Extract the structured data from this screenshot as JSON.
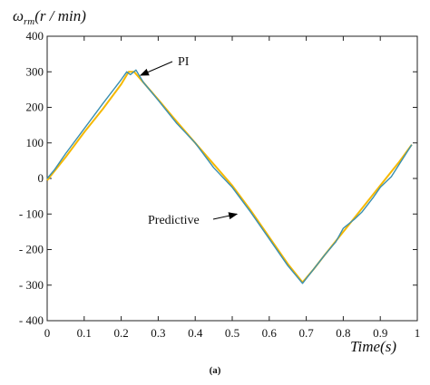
{
  "chart_data": {
    "type": "line",
    "title": "",
    "ylabel": "ωrm(r / min)",
    "ylabel_parts": {
      "symbol": "ω",
      "subscript": "rm",
      "rest": "(r / min)"
    },
    "xlabel": "Time(s)",
    "xlim": [
      0,
      1
    ],
    "ylim": [
      -400,
      400
    ],
    "x_ticks": [
      "0",
      "0.1",
      "0.2",
      "0.3",
      "0.4",
      "0.5",
      "0.6",
      "0.7",
      "0.8",
      "0.9",
      "1"
    ],
    "y_ticks": [
      "400",
      "300",
      "200",
      "100",
      "0",
      "- 100",
      "- 200",
      "- 300",
      "- 400"
    ],
    "grid": false,
    "series": [
      {
        "name": "PI",
        "color": "#f5b800",
        "x": [
          0,
          0.05,
          0.1,
          0.15,
          0.2,
          0.22,
          0.235,
          0.25,
          0.3,
          0.35,
          0.4,
          0.45,
          0.5,
          0.55,
          0.6,
          0.65,
          0.69,
          0.72,
          0.75,
          0.8,
          0.85,
          0.9,
          0.95,
          0.985
        ],
        "y": [
          -5,
          60,
          130,
          195,
          265,
          300,
          300,
          282,
          222,
          160,
          100,
          40,
          -20,
          -90,
          -165,
          -240,
          -292,
          -255,
          -215,
          -150,
          -85,
          -20,
          45,
          95
        ]
      },
      {
        "name": "Predictive",
        "color": "#3a8fb0",
        "x": [
          0,
          0.02,
          0.05,
          0.1,
          0.15,
          0.2,
          0.215,
          0.225,
          0.24,
          0.26,
          0.3,
          0.35,
          0.4,
          0.45,
          0.5,
          0.55,
          0.6,
          0.65,
          0.69,
          0.72,
          0.75,
          0.78,
          0.8,
          0.83,
          0.85,
          0.88,
          0.9,
          0.93,
          0.95,
          0.985
        ],
        "y": [
          0,
          25,
          70,
          140,
          210,
          278,
          300,
          292,
          305,
          270,
          220,
          155,
          100,
          30,
          -25,
          -95,
          -170,
          -245,
          -295,
          -255,
          -215,
          -178,
          -140,
          -115,
          -95,
          -55,
          -25,
          5,
          38,
          95
        ]
      }
    ],
    "annotations": [
      {
        "text": "PI",
        "target": {
          "x": 0.245,
          "y": 285
        }
      },
      {
        "text": "Predictive",
        "target": {
          "x": 0.52,
          "y": -95
        }
      }
    ]
  },
  "caption": "(a)"
}
